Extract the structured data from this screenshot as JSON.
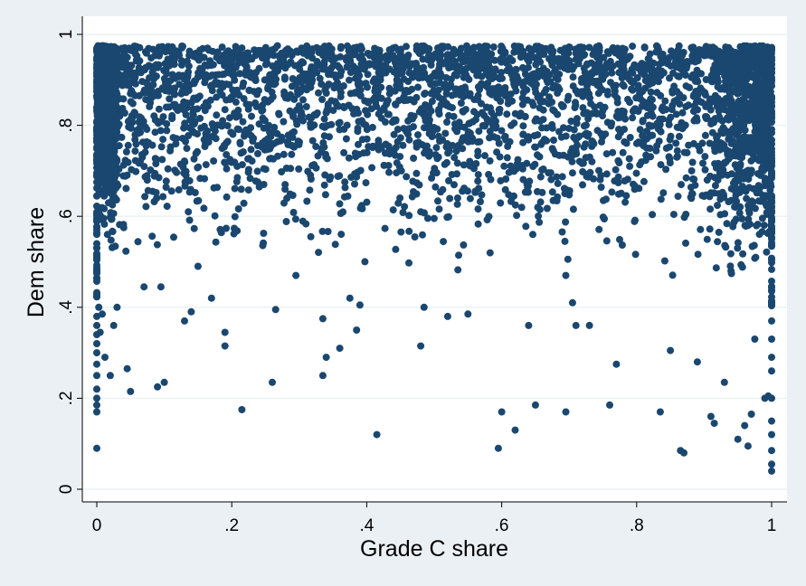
{
  "chart_data": {
    "type": "scatter",
    "title": "",
    "xlabel": "Grade C share",
    "ylabel": "Dem share",
    "xlim": [
      0,
      1
    ],
    "ylim": [
      0,
      1
    ],
    "xticks": [
      0,
      0.2,
      0.4,
      0.6,
      0.8,
      1
    ],
    "xtick_labels": [
      "0",
      ".2",
      ".4",
      ".6",
      ".8",
      "1"
    ],
    "yticks": [
      0,
      0.2,
      0.4,
      0.6,
      0.8,
      1
    ],
    "ytick_labels": [
      "0",
      ".2",
      ".4",
      ".6",
      ".8",
      "1"
    ],
    "grid": true,
    "legend": "none",
    "colors": {
      "marker": "#1a476f",
      "plot_background": "#ffffff",
      "outer_background": "#ebf0f5",
      "grid": "#eaf2f3"
    },
    "series": [
      {
        "x": [
          0,
          0,
          0,
          0,
          0,
          0,
          0,
          0,
          0,
          0,
          0,
          0,
          0.003,
          0.005,
          0.008,
          0.012,
          0.02,
          0.025,
          0.03,
          0.045,
          0.05,
          0.07,
          0.09,
          0.095,
          0.1,
          0.13,
          0.14,
          0.15,
          0.17,
          0.19,
          0.19,
          0.215,
          0.26,
          0.265,
          0.295,
          0.335,
          0.335,
          0.34,
          0.36,
          0.375,
          0.385,
          0.39,
          0.415,
          0.48,
          0.485,
          0.52,
          0.55,
          0.595,
          0.6,
          0.62,
          0.64,
          0.65,
          0.695,
          0.705,
          0.71,
          0.73,
          0.76,
          0.77,
          0.835,
          0.85,
          0.865,
          0.87,
          0.89,
          0.91,
          0.915,
          0.93,
          0.95,
          0.96,
          0.965,
          0.97,
          0.975,
          0.99,
          0.995,
          1,
          1,
          1,
          1,
          1,
          1,
          1,
          1,
          1,
          1,
          1
        ],
        "y": [
          0.09,
          0.17,
          0.185,
          0.2,
          0.22,
          0.25,
          0.275,
          0.3,
          0.32,
          0.34,
          0.36,
          0.38,
          0.4,
          0.345,
          0.385,
          0.29,
          0.25,
          0.36,
          0.4,
          0.265,
          0.215,
          0.445,
          0.225,
          0.445,
          0.235,
          0.37,
          0.39,
          0.49,
          0.42,
          0.315,
          0.345,
          0.175,
          0.235,
          0.395,
          0.47,
          0.25,
          0.375,
          0.29,
          0.31,
          0.42,
          0.35,
          0.405,
          0.12,
          0.315,
          0.4,
          0.38,
          0.385,
          0.09,
          0.17,
          0.13,
          0.36,
          0.185,
          0.17,
          0.41,
          0.36,
          0.36,
          0.185,
          0.275,
          0.17,
          0.305,
          0.085,
          0.08,
          0.28,
          0.16,
          0.145,
          0.235,
          0.11,
          0.14,
          0.095,
          0.165,
          0.33,
          0.2,
          0.205,
          0.04,
          0.055,
          0.085,
          0.12,
          0.15,
          0.2,
          0.26,
          0.29,
          0.33,
          0.37,
          0.41
        ]
      }
    ]
  }
}
